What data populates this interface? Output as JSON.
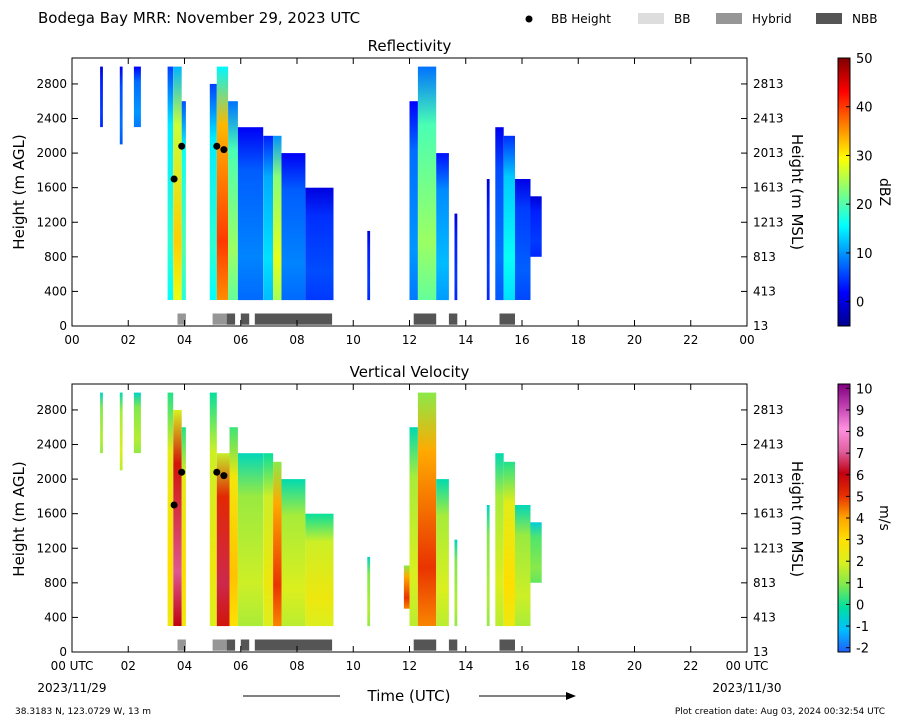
{
  "header": {
    "title": "Bodega Bay MRR:  November 29, 2023 UTC",
    "legend": [
      {
        "label": "BB Height",
        "kind": "dot",
        "color": "#000000"
      },
      {
        "label": "BB",
        "kind": "box",
        "color": "#dddddd"
      },
      {
        "label": "Hybrid",
        "kind": "box",
        "color": "#969696"
      },
      {
        "label": "NBB",
        "kind": "box",
        "color": "#555555"
      }
    ]
  },
  "footer": {
    "location": "38.3183 N, 123.0729 W, 13 m",
    "creation": "Plot creation date: Aug 03, 2024 00:32:54 UTC",
    "xlabel": "Time (UTC)",
    "date_left": "2023/11/29",
    "date_right": "2023/11/30"
  },
  "chart_data": [
    {
      "type": "heatmap",
      "title": "Reflectivity",
      "ylabel": "Height (m AGL)",
      "ylabel_right": "Height (m MSL)",
      "xlim": [
        0,
        24
      ],
      "ylim": [
        0,
        3100
      ],
      "x_ticks": [
        "00",
        "02",
        "04",
        "06",
        "08",
        "10",
        "12",
        "14",
        "16",
        "18",
        "20",
        "22",
        "00"
      ],
      "y_ticks": [
        0,
        400,
        800,
        1200,
        1600,
        2000,
        2400,
        2800
      ],
      "y_ticks_right": [
        "13",
        "413",
        "813",
        "1213",
        "1613",
        "2013",
        "2413",
        "2813"
      ],
      "colorbar": {
        "label": "dBZ",
        "ticks": [
          "50",
          "40",
          "30",
          "20",
          "10",
          "0"
        ],
        "tick_values": [
          50,
          40,
          30,
          20,
          10,
          0
        ],
        "range": [
          -5,
          50
        ],
        "colors": [
          "#00008f",
          "#0000ff",
          "#007fff",
          "#00ffff",
          "#7fff7f",
          "#ffff00",
          "#ff7f00",
          "#ff0000",
          "#7f0000"
        ]
      },
      "bb_height": [
        {
          "time": 3.63,
          "height": 1700
        },
        {
          "time": 3.9,
          "height": 2080
        },
        {
          "time": 5.15,
          "height": 2080
        },
        {
          "time": 5.4,
          "height": 2040
        }
      ],
      "bb_type_segments": [
        {
          "start": 3.75,
          "end": 4.05,
          "type": "Hybrid"
        },
        {
          "start": 5.0,
          "end": 5.5,
          "type": "Hybrid"
        },
        {
          "start": 5.5,
          "end": 5.8,
          "type": "NBB"
        },
        {
          "start": 6.0,
          "end": 6.3,
          "type": "NBB"
        },
        {
          "start": 6.5,
          "end": 9.25,
          "type": "NBB"
        },
        {
          "start": 12.15,
          "end": 12.95,
          "type": "NBB"
        },
        {
          "start": 13.4,
          "end": 13.7,
          "type": "NBB"
        },
        {
          "start": 15.2,
          "end": 15.75,
          "type": "NBB"
        }
      ],
      "echo_regions": [
        {
          "start": 1.0,
          "end": 1.1,
          "bottom": 2300,
          "top": 3000,
          "value": 5
        },
        {
          "start": 1.7,
          "end": 1.8,
          "bottom": 2100,
          "top": 3000,
          "value": 8
        },
        {
          "start": 2.2,
          "end": 2.45,
          "bottom": 2300,
          "top": 3000,
          "value": 10
        },
        {
          "start": 3.4,
          "end": 3.6,
          "bottom": 300,
          "top": 3000,
          "value": 18
        },
        {
          "start": 3.6,
          "end": 3.9,
          "bottom": 300,
          "top": 3000,
          "value": 32
        },
        {
          "start": 3.9,
          "end": 4.05,
          "bottom": 300,
          "top": 2600,
          "value": 20
        },
        {
          "start": 4.9,
          "end": 5.15,
          "bottom": 300,
          "top": 2800,
          "value": 18
        },
        {
          "start": 5.15,
          "end": 5.55,
          "bottom": 300,
          "top": 3000,
          "value": 40
        },
        {
          "start": 5.55,
          "end": 5.9,
          "bottom": 300,
          "top": 2600,
          "value": 24
        },
        {
          "start": 5.9,
          "end": 6.8,
          "bottom": 300,
          "top": 2300,
          "value": 9
        },
        {
          "start": 6.8,
          "end": 7.15,
          "bottom": 300,
          "top": 2200,
          "value": 14
        },
        {
          "start": 7.15,
          "end": 7.45,
          "bottom": 300,
          "top": 2200,
          "value": 28
        },
        {
          "start": 7.45,
          "end": 8.3,
          "bottom": 300,
          "top": 2000,
          "value": 9
        },
        {
          "start": 8.3,
          "end": 9.3,
          "bottom": 300,
          "top": 1600,
          "value": 6
        },
        {
          "start": 10.5,
          "end": 10.6,
          "bottom": 300,
          "top": 1100,
          "value": 5
        },
        {
          "start": 12.0,
          "end": 12.3,
          "bottom": 300,
          "top": 2600,
          "value": 10
        },
        {
          "start": 12.3,
          "end": 12.95,
          "bottom": 300,
          "top": 3000,
          "value": 24
        },
        {
          "start": 12.95,
          "end": 13.4,
          "bottom": 300,
          "top": 2000,
          "value": 12
        },
        {
          "start": 13.6,
          "end": 13.7,
          "bottom": 300,
          "top": 1300,
          "value": 5
        },
        {
          "start": 14.75,
          "end": 14.85,
          "bottom": 300,
          "top": 1700,
          "value": 5
        },
        {
          "start": 15.05,
          "end": 15.35,
          "bottom": 300,
          "top": 2300,
          "value": 8
        },
        {
          "start": 15.35,
          "end": 15.75,
          "bottom": 300,
          "top": 2200,
          "value": 16
        },
        {
          "start": 15.75,
          "end": 16.3,
          "bottom": 300,
          "top": 1700,
          "value": 7
        },
        {
          "start": 16.3,
          "end": 16.7,
          "bottom": 800,
          "top": 1500,
          "value": 5
        }
      ]
    },
    {
      "type": "heatmap",
      "title": "Vertical Velocity",
      "ylabel": "Height (m AGL)",
      "ylabel_right": "Height (m MSL)",
      "xlim": [
        0,
        24
      ],
      "ylim": [
        0,
        3100
      ],
      "x_ticks": [
        "00 UTC",
        "02",
        "04",
        "06",
        "08",
        "10",
        "12",
        "14",
        "16",
        "18",
        "20",
        "22",
        "00 UTC"
      ],
      "y_ticks": [
        0,
        400,
        800,
        1200,
        1600,
        2000,
        2400,
        2800
      ],
      "y_ticks_right": [
        "13",
        "413",
        "813",
        "1213",
        "1613",
        "2013",
        "2413",
        "2813"
      ],
      "colorbar": {
        "label": "m/s",
        "ticks": [
          "10",
          "9",
          "8",
          "7",
          "6",
          "5",
          "4",
          "3",
          "2",
          "1",
          "0",
          "-1",
          "-2"
        ],
        "tick_values": [
          10,
          9,
          8,
          7,
          6,
          5,
          4,
          3,
          2,
          1,
          0,
          -1,
          -2
        ],
        "range": [
          -2.2,
          10.2
        ],
        "colors": [
          "#1f5fff",
          "#00bfff",
          "#00e0a0",
          "#7fe84f",
          "#d8f020",
          "#ffe000",
          "#ffa500",
          "#e83000",
          "#c00010",
          "#e060a0",
          "#ff90e0",
          "#c040b0",
          "#800080"
        ]
      },
      "bb_height": [
        {
          "time": 3.63,
          "height": 1700
        },
        {
          "time": 3.9,
          "height": 2080
        },
        {
          "time": 5.15,
          "height": 2080
        },
        {
          "time": 5.4,
          "height": 2040
        }
      ],
      "bb_type_segments": [
        {
          "start": 3.75,
          "end": 4.05,
          "type": "Hybrid"
        },
        {
          "start": 5.0,
          "end": 5.5,
          "type": "Hybrid"
        },
        {
          "start": 5.5,
          "end": 5.8,
          "type": "NBB"
        },
        {
          "start": 6.0,
          "end": 6.3,
          "type": "NBB"
        },
        {
          "start": 6.5,
          "end": 9.25,
          "type": "NBB"
        },
        {
          "start": 12.15,
          "end": 12.95,
          "type": "NBB"
        },
        {
          "start": 13.4,
          "end": 13.7,
          "type": "NBB"
        },
        {
          "start": 15.2,
          "end": 15.75,
          "type": "NBB"
        }
      ],
      "echo_regions": [
        {
          "start": 1.0,
          "end": 1.1,
          "bottom": 2300,
          "top": 3000,
          "value": 1.5
        },
        {
          "start": 1.7,
          "end": 1.8,
          "bottom": 2100,
          "top": 3000,
          "value": 2
        },
        {
          "start": 2.2,
          "end": 2.45,
          "bottom": 2300,
          "top": 3000,
          "value": 1.5
        },
        {
          "start": 3.4,
          "end": 3.6,
          "bottom": 300,
          "top": 3000,
          "value": 3
        },
        {
          "start": 3.6,
          "end": 3.9,
          "bottom": 300,
          "top": 2800,
          "value": 7
        },
        {
          "start": 3.9,
          "end": 4.05,
          "bottom": 300,
          "top": 2600,
          "value": 3
        },
        {
          "start": 4.9,
          "end": 5.15,
          "bottom": 300,
          "top": 3000,
          "value": 2.5
        },
        {
          "start": 5.15,
          "end": 5.6,
          "bottom": 300,
          "top": 2300,
          "value": 6.5
        },
        {
          "start": 5.6,
          "end": 5.9,
          "bottom": 300,
          "top": 2600,
          "value": 3.5
        },
        {
          "start": 5.9,
          "end": 6.8,
          "bottom": 300,
          "top": 2300,
          "value": 1.8
        },
        {
          "start": 6.8,
          "end": 7.15,
          "bottom": 300,
          "top": 2300,
          "value": 2.5
        },
        {
          "start": 7.15,
          "end": 7.45,
          "bottom": 300,
          "top": 2200,
          "value": 5
        },
        {
          "start": 7.45,
          "end": 8.3,
          "bottom": 300,
          "top": 2000,
          "value": 2
        },
        {
          "start": 8.3,
          "end": 9.3,
          "bottom": 300,
          "top": 1600,
          "value": 2.5
        },
        {
          "start": 10.5,
          "end": 10.6,
          "bottom": 300,
          "top": 1100,
          "value": 1.5
        },
        {
          "start": 11.8,
          "end": 12.0,
          "bottom": 500,
          "top": 1000,
          "value": 5
        },
        {
          "start": 12.0,
          "end": 12.3,
          "bottom": 300,
          "top": 2600,
          "value": 2
        },
        {
          "start": 12.3,
          "end": 12.95,
          "bottom": 300,
          "top": 3000,
          "value": 5
        },
        {
          "start": 12.95,
          "end": 13.4,
          "bottom": 300,
          "top": 2000,
          "value": 2
        },
        {
          "start": 13.6,
          "end": 13.7,
          "bottom": 300,
          "top": 1300,
          "value": 1.5
        },
        {
          "start": 14.75,
          "end": 14.85,
          "bottom": 300,
          "top": 1700,
          "value": 1.5
        },
        {
          "start": 15.05,
          "end": 15.35,
          "bottom": 300,
          "top": 2300,
          "value": 2
        },
        {
          "start": 15.35,
          "end": 15.75,
          "bottom": 300,
          "top": 2200,
          "value": 3
        },
        {
          "start": 15.75,
          "end": 16.3,
          "bottom": 300,
          "top": 1700,
          "value": 1.8
        },
        {
          "start": 16.3,
          "end": 16.7,
          "bottom": 800,
          "top": 1500,
          "value": 1
        }
      ]
    }
  ]
}
